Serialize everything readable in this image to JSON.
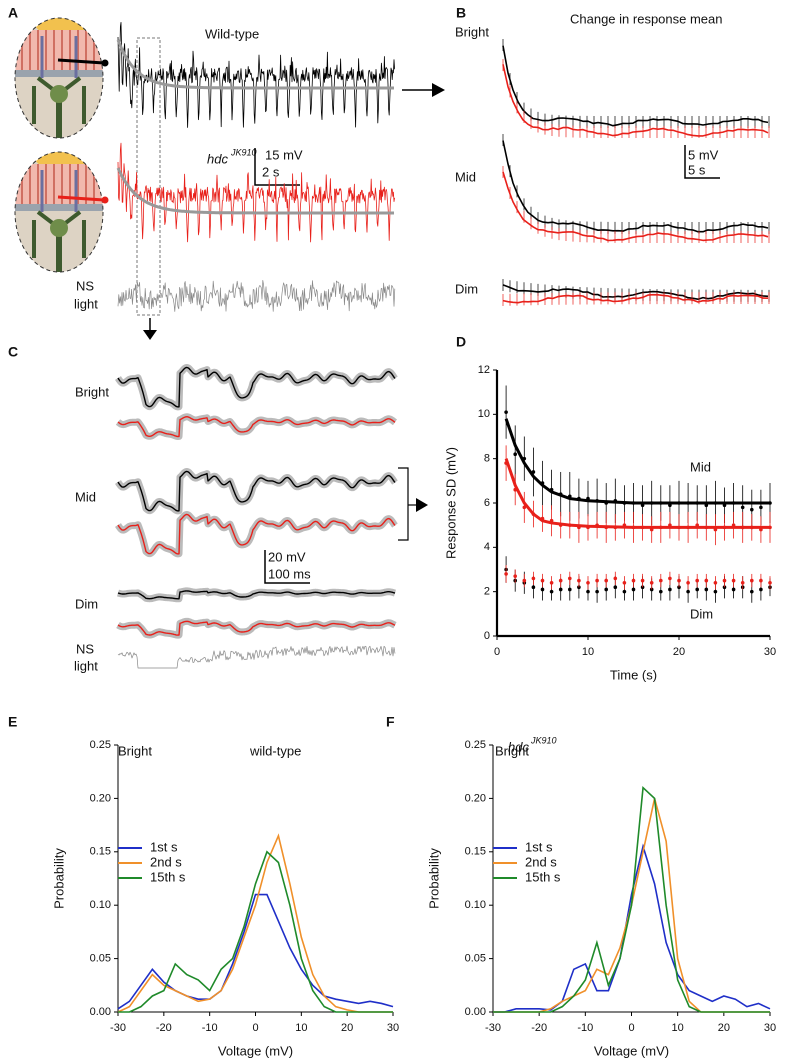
{
  "figure": {
    "A": {
      "label": "A",
      "wt": "Wild-type",
      "mut": "hdc",
      "mut_sup": "JK910",
      "scale_v": "15 mV",
      "scale_t": "2 s",
      "stim": [
        "NS",
        "light"
      ]
    },
    "B": {
      "label": "B",
      "title": "Change in response mean",
      "rows": [
        "Bright",
        "Mid",
        "Dim"
      ],
      "scale_v": "5 mV",
      "scale_t": "5 s"
    },
    "C": {
      "label": "C",
      "rows": [
        "Bright",
        "Mid",
        "Dim"
      ],
      "stim": [
        "NS",
        "light"
      ],
      "scale_v": "20 mV",
      "scale_t": "100 ms"
    },
    "D": {
      "label": "D"
    },
    "E": {
      "label": "E"
    },
    "F": {
      "label": "F"
    }
  },
  "chart_data": [
    {
      "type": "scatter",
      "ylabel": "Response SD (mV)",
      "xlabel": "Time (s)",
      "annotations": [
        "Mid",
        "Dim"
      ],
      "xlim": [
        0,
        30
      ],
      "ylim": [
        0,
        12
      ],
      "xticks": [
        0,
        10,
        20,
        30
      ],
      "yticks": [
        0,
        2,
        4,
        6,
        8,
        10,
        12
      ],
      "x": [
        1,
        2,
        3,
        4,
        5,
        6,
        7,
        8,
        9,
        10,
        11,
        12,
        13,
        14,
        15,
        16,
        17,
        18,
        19,
        20,
        21,
        22,
        23,
        24,
        25,
        26,
        27,
        28,
        29,
        30
      ],
      "series": [
        {
          "color": "#000000",
          "values": [
            10.1,
            8.2,
            8.0,
            7.4,
            6.9,
            6.6,
            6.4,
            6.3,
            6.2,
            6.2,
            6.1,
            6.0,
            6.1,
            6.0,
            6.0,
            5.9,
            6.0,
            6.0,
            5.9,
            6.0,
            6.0,
            6.0,
            5.9,
            6.0,
            5.9,
            6.0,
            5.8,
            5.7,
            5.8,
            6.0
          ],
          "errors": [
            1.2,
            1.3,
            1.0,
            1.1,
            1.0,
            0.9,
            1.0,
            1.1,
            0.9,
            0.8,
            1.0,
            0.9,
            1.0,
            0.8,
            0.9,
            0.9,
            1.0,
            0.8,
            0.9,
            1.0,
            0.9,
            0.8,
            0.9,
            1.0,
            0.8,
            0.9,
            1.0,
            0.9,
            0.8,
            0.9
          ]
        },
        {
          "color": "#e8201a",
          "values": [
            7.8,
            6.6,
            5.8,
            5.5,
            5.3,
            5.2,
            5.0,
            5.0,
            4.9,
            4.9,
            5.0,
            4.9,
            4.9,
            5.0,
            4.9,
            4.9,
            4.8,
            4.9,
            5.0,
            4.9,
            4.9,
            5.0,
            4.9,
            4.8,
            4.9,
            5.0,
            4.9,
            4.9,
            4.8,
            4.9
          ],
          "errors": [
            0.8,
            0.7,
            0.7,
            0.6,
            0.6,
            0.7,
            0.6,
            0.6,
            0.7,
            0.6,
            0.6,
            0.7,
            0.6,
            0.6,
            0.7,
            0.6,
            0.6,
            0.7,
            0.6,
            0.6,
            0.7,
            0.6,
            0.6,
            0.7,
            0.6,
            0.6,
            0.7,
            0.6,
            0.6,
            0.7
          ]
        },
        {
          "color": "#000000",
          "values": [
            3.0,
            2.5,
            2.4,
            2.2,
            2.1,
            2.0,
            2.1,
            2.1,
            2.2,
            2.0,
            2.0,
            2.1,
            2.2,
            2.0,
            2.1,
            2.2,
            2.1,
            2.0,
            2.1,
            2.2,
            2.0,
            2.1,
            2.1,
            2.0,
            2.2,
            2.1,
            2.2,
            2.0,
            2.1,
            2.2
          ],
          "errors": [
            0.6,
            0.5,
            0.5,
            0.5,
            0.5,
            0.4,
            0.5,
            0.5,
            0.5,
            0.4,
            0.5,
            0.5,
            0.5,
            0.4,
            0.5,
            0.5,
            0.5,
            0.4,
            0.5,
            0.5,
            0.5,
            0.4,
            0.5,
            0.5,
            0.5,
            0.4,
            0.5,
            0.5,
            0.5,
            0.4
          ]
        },
        {
          "color": "#e8201a",
          "values": [
            2.8,
            2.7,
            2.5,
            2.6,
            2.5,
            2.4,
            2.5,
            2.6,
            2.5,
            2.4,
            2.5,
            2.5,
            2.6,
            2.4,
            2.5,
            2.5,
            2.4,
            2.5,
            2.6,
            2.5,
            2.4,
            2.5,
            2.5,
            2.4,
            2.5,
            2.5,
            2.4,
            2.5,
            2.5,
            2.4
          ],
          "errors": [
            0.4,
            0.3,
            0.3,
            0.3,
            0.3,
            0.3,
            0.3,
            0.3,
            0.3,
            0.3,
            0.3,
            0.3,
            0.3,
            0.3,
            0.3,
            0.3,
            0.3,
            0.3,
            0.3,
            0.3,
            0.3,
            0.3,
            0.3,
            0.3,
            0.3,
            0.3,
            0.3,
            0.3,
            0.3,
            0.3
          ]
        }
      ],
      "fits": [
        {
          "color": "#000000",
          "x": [
            1,
            2,
            3,
            4,
            5,
            6,
            8,
            10,
            15,
            20,
            30
          ],
          "values": [
            9.8,
            8.6,
            7.8,
            7.2,
            6.8,
            6.5,
            6.2,
            6.1,
            6.0,
            6.0,
            6.0
          ]
        },
        {
          "color": "#e8201a",
          "x": [
            1,
            2,
            3,
            4,
            5,
            6,
            8,
            10,
            15,
            20,
            30
          ],
          "values": [
            8.0,
            6.8,
            6.0,
            5.5,
            5.2,
            5.1,
            5.0,
            4.95,
            4.9,
            4.9,
            4.9
          ]
        }
      ]
    },
    {
      "type": "line",
      "title": "wild-type",
      "annotations": [
        "Bright"
      ],
      "ylabel": "Probability",
      "xlabel": "Voltage (mV)",
      "legend": "left",
      "xlim": [
        -30,
        30
      ],
      "ylim": [
        0,
        0.25
      ],
      "xticks": [
        -30,
        -20,
        -10,
        0,
        10,
        20,
        30
      ],
      "yticks": [
        {
          "value": 0,
          "label": "0.00"
        },
        {
          "value": 0.05,
          "label": "0.05"
        },
        {
          "value": 0.1,
          "label": "0.10"
        },
        {
          "value": 0.15,
          "label": "0.15"
        },
        {
          "value": 0.2,
          "label": "0.20"
        },
        {
          "value": 0.25,
          "label": "0.25"
        }
      ],
      "x": [
        -30,
        -27.5,
        -25,
        -22.5,
        -20,
        -17.5,
        -15,
        -12.5,
        -10,
        -7.5,
        -5,
        -2.5,
        0,
        2.5,
        5,
        7.5,
        10,
        12.5,
        15,
        17.5,
        20,
        22.5,
        25,
        27.5,
        30
      ],
      "series": [
        {
          "name": "1st s",
          "color": "#1f2fc8",
          "values": [
            0.003,
            0.01,
            0.025,
            0.04,
            0.028,
            0.02,
            0.015,
            0.012,
            0.012,
            0.02,
            0.045,
            0.075,
            0.11,
            0.11,
            0.085,
            0.06,
            0.04,
            0.025,
            0.015,
            0.012,
            0.01,
            0.008,
            0.01,
            0.008,
            0.005
          ]
        },
        {
          "name": "2nd s",
          "color": "#f0902a",
          "values": [
            0,
            0.005,
            0.02,
            0.035,
            0.025,
            0.02,
            0.015,
            0.01,
            0.012,
            0.02,
            0.04,
            0.07,
            0.1,
            0.14,
            0.165,
            0.12,
            0.07,
            0.035,
            0.015,
            0.005,
            0.002,
            0,
            0,
            0,
            0
          ]
        },
        {
          "name": "15th s",
          "color": "#1f8a2a",
          "values": [
            0,
            0,
            0.005,
            0.015,
            0.02,
            0.045,
            0.035,
            0.03,
            0.02,
            0.04,
            0.05,
            0.08,
            0.12,
            0.15,
            0.14,
            0.1,
            0.05,
            0.02,
            0.005,
            0,
            0,
            0,
            0,
            0,
            0
          ]
        }
      ]
    },
    {
      "type": "line",
      "title": "hdc",
      "title_sup": "JK910",
      "annotations": [
        "Bright"
      ],
      "ylabel": "Probability",
      "xlabel": "Voltage (mV)",
      "legend": "left",
      "xlim": [
        -30,
        30
      ],
      "ylim": [
        0,
        0.25
      ],
      "xticks": [
        -30,
        -20,
        -10,
        0,
        10,
        20,
        30
      ],
      "yticks": [
        {
          "value": 0,
          "label": "0.00"
        },
        {
          "value": 0.05,
          "label": "0.05"
        },
        {
          "value": 0.1,
          "label": "0.10"
        },
        {
          "value": 0.15,
          "label": "0.15"
        },
        {
          "value": 0.2,
          "label": "0.20"
        },
        {
          "value": 0.25,
          "label": "0.25"
        }
      ],
      "x": [
        -30,
        -27.5,
        -25,
        -22.5,
        -20,
        -17.5,
        -15,
        -12.5,
        -10,
        -7.5,
        -5,
        -2.5,
        0,
        2.5,
        5,
        7.5,
        10,
        12.5,
        15,
        17.5,
        20,
        22.5,
        25,
        27.5,
        30
      ],
      "series": [
        {
          "name": "1st s",
          "color": "#1f2fc8",
          "values": [
            0,
            0,
            0.003,
            0.003,
            0.003,
            0.002,
            0.01,
            0.04,
            0.045,
            0.02,
            0.02,
            0.05,
            0.11,
            0.155,
            0.12,
            0.065,
            0.035,
            0.02,
            0.015,
            0.01,
            0.015,
            0.012,
            0.005,
            0.008,
            0.003
          ]
        },
        {
          "name": "2nd s",
          "color": "#f0902a",
          "values": [
            0,
            0,
            0,
            0,
            0,
            0.003,
            0.01,
            0.015,
            0.02,
            0.04,
            0.035,
            0.06,
            0.1,
            0.15,
            0.2,
            0.16,
            0.05,
            0.01,
            0,
            0,
            0,
            0,
            0,
            0,
            0
          ]
        },
        {
          "name": "15th s",
          "color": "#1f8a2a",
          "values": [
            0,
            0,
            0,
            0,
            0,
            0,
            0.005,
            0.015,
            0.03,
            0.065,
            0.025,
            0.05,
            0.1,
            0.21,
            0.2,
            0.1,
            0.03,
            0.005,
            0,
            0,
            0,
            0,
            0,
            0,
            0
          ]
        }
      ]
    }
  ]
}
